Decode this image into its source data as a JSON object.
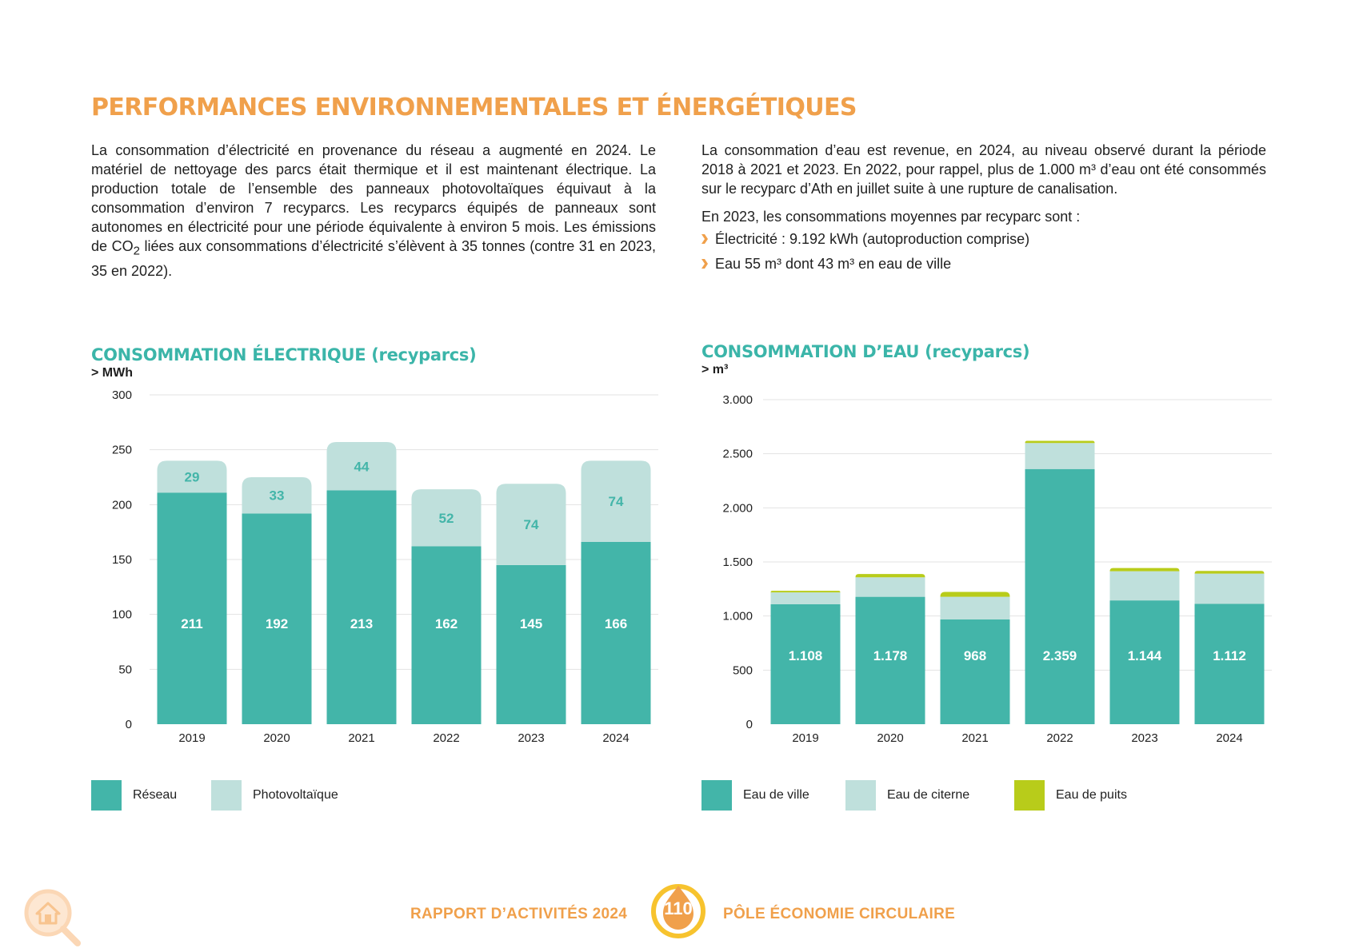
{
  "title": "PERFORMANCES ENVIRONNEMENTALES ET ÉNERGÉTIQUES",
  "left_text": {
    "p1_before_co2": "La consommation d’électricité en provenance du réseau a augmenté en 2024. Le matériel de nettoyage des parcs était thermique et il est maintenant électrique. La production totale de l’ensemble des panneaux photovoltaïques équivaut à la consommation d’environ 7 recyparcs. Les recyparcs équipés de panneaux sont autonomes en électricité pour une période équivalente à environ 5 mois. Les émissions de CO",
    "p1_co2_sub": "2",
    "p1_after_co2": " liées aux consommations d’électricité s’élèvent à 35 tonnes (contre 31 en 2023, 35 en 2022)."
  },
  "right_text": {
    "p1": "La consommation d’eau est revenue, en 2024, au niveau observé durant la période 2018 à 2021 et 2023. En 2022, pour rappel, plus de 1.000 m³ d’eau ont été consommés sur le recyparc d’Ath en juillet suite à une rupture de canalisation.",
    "p2": "En 2023, les consommations moyennes par recyparc sont :",
    "bullets": [
      "Électricité : 9.192 kWh (autoproduction comprise)",
      "Eau 55 m³ dont 43 m³ en eau de ville"
    ]
  },
  "charts": {
    "electric": {
      "title": "CONSOMMATION ÉLECTRIQUE (recyparcs)",
      "unit": "> MWh"
    },
    "water": {
      "title": "CONSOMMATION D’EAU (recyparcs)",
      "unit": "> m³"
    }
  },
  "chart_data": [
    {
      "type": "bar",
      "stacked": true,
      "title": "CONSOMMATION ÉLECTRIQUE (recyparcs)",
      "ylabel": "> MWh",
      "categories": [
        "2019",
        "2020",
        "2021",
        "2022",
        "2023",
        "2024"
      ],
      "series": [
        {
          "name": "Réseau",
          "color": "#43b5a9",
          "values": [
            211,
            192,
            213,
            162,
            145,
            166
          ]
        },
        {
          "name": "Photovoltaïque",
          "color": "#bfe0dc",
          "values": [
            29,
            33,
            44,
            52,
            74,
            74
          ]
        }
      ],
      "data_labels": {
        "Réseau": [
          "211",
          "192",
          "213",
          "162",
          "145",
          "166"
        ],
        "Photovoltaïque": [
          "29",
          "33",
          "44",
          "52",
          "74",
          "74"
        ]
      },
      "ylim": [
        0,
        300
      ],
      "yticks": [
        0,
        50,
        100,
        150,
        200,
        250,
        300
      ],
      "ytick_labels": [
        "0",
        "50",
        "100",
        "150",
        "200",
        "250",
        "300"
      ],
      "grid": true,
      "legend_position": "bottom-left"
    },
    {
      "type": "bar",
      "stacked": true,
      "title": "CONSOMMATION D’EAU (recyparcs)",
      "ylabel": "> m³",
      "categories": [
        "2019",
        "2020",
        "2021",
        "2022",
        "2023",
        "2024"
      ],
      "series": [
        {
          "name": "Eau de ville",
          "color": "#43b5a9",
          "values": [
            1108,
            1178,
            968,
            2359,
            1144,
            1112
          ]
        },
        {
          "name": "Eau de citerne",
          "color": "#bfe0dc",
          "values": [
            110,
            180,
            210,
            240,
            270,
            280
          ]
        },
        {
          "name": "Eau de puits",
          "color": "#b8cc1a",
          "values": [
            15,
            30,
            45,
            20,
            30,
            25
          ]
        }
      ],
      "data_labels": {
        "Eau de ville": [
          "1.108",
          "1.178",
          "968",
          "2.359",
          "1.144",
          "1.112"
        ]
      },
      "ylim": [
        0,
        3000
      ],
      "yticks": [
        0,
        500,
        1000,
        1500,
        2000,
        2500,
        3000
      ],
      "ytick_labels": [
        "0",
        "500",
        "1.000",
        "1.500",
        "2.000",
        "2.500",
        "3.000"
      ],
      "grid": true,
      "legend_position": "bottom-left"
    }
  ],
  "footer": {
    "report_prefix": "RAPPORT D’ACTIVITÉS 20",
    "report_suffix": "24",
    "page_number": "110",
    "section": "PÔLE ÉCONOMIE CIRCULAIRE"
  },
  "icons": {
    "bullet": "chevron-right-icon",
    "corner": "home-search-icon",
    "page": "drop-badge-icon"
  },
  "colors": {
    "orange": "#f0a04b",
    "teal": "#43b5a9",
    "light_teal": "#bfe0dc",
    "lime": "#b8cc1a"
  }
}
